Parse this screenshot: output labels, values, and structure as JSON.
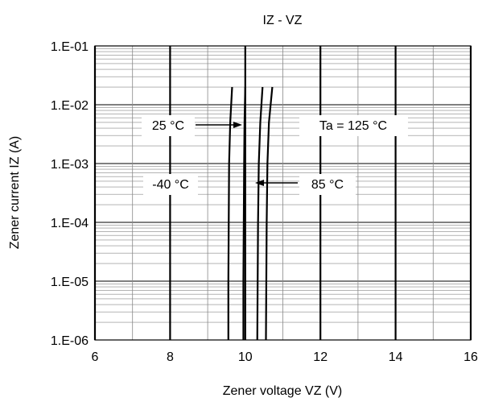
{
  "chart_data": {
    "type": "line",
    "title": "IZ - VZ",
    "xlabel": "Zener voltage VZ (V)",
    "ylabel": "Zener current IZ (A)",
    "xlim": [
      6,
      16
    ],
    "ylim": [
      1e-06,
      0.1
    ],
    "y_scale": "log",
    "grid": true,
    "x_ticks": [
      6,
      8,
      10,
      12,
      14,
      16
    ],
    "x_tick_labels": [
      "6",
      "8",
      "10",
      "12",
      "14",
      "16"
    ],
    "y_ticks": [
      1e-06,
      1e-05,
      0.0001,
      0.001,
      0.01,
      0.1
    ],
    "y_tick_labels": [
      "1.E-06",
      "1.E-05",
      "1.E-04",
      "1.E-03",
      "1.E-02",
      "1.E-01"
    ],
    "series": [
      {
        "name": "-40 °C",
        "x": [
          9.55,
          9.55,
          9.56,
          9.57,
          9.6,
          9.65
        ],
        "y": [
          1e-06,
          1e-05,
          0.0001,
          0.001,
          0.005,
          0.02
        ]
      },
      {
        "name": "25 °C",
        "x": [
          9.95,
          9.95,
          9.96,
          9.97,
          9.98,
          10.0
        ],
        "y": [
          1e-06,
          1e-05,
          0.0001,
          0.001,
          0.005,
          0.02
        ]
      },
      {
        "name": "85 °C",
        "x": [
          10.32,
          10.33,
          10.34,
          10.36,
          10.4,
          10.46
        ],
        "y": [
          1e-06,
          1e-05,
          0.0001,
          0.001,
          0.005,
          0.02
        ]
      },
      {
        "name": "Ta = 125 °C",
        "x": [
          10.55,
          10.56,
          10.57,
          10.59,
          10.63,
          10.72
        ],
        "y": [
          1e-06,
          1e-05,
          0.0001,
          0.001,
          0.005,
          0.02
        ]
      }
    ],
    "annotations": [
      {
        "text": "25 °C",
        "series": "25 °C"
      },
      {
        "text": "Ta = 125 °C",
        "series": "Ta = 125 °C"
      },
      {
        "text": "-40 °C",
        "series": "-40 °C"
      },
      {
        "text": "85 °C",
        "series": "85 °C"
      }
    ]
  }
}
